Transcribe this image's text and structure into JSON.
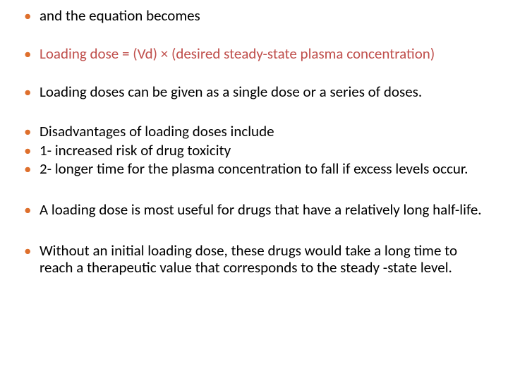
{
  "slide": {
    "background_color": "#ffffff",
    "bullet_color": "#de6f2c",
    "text_color": "#000000",
    "highlight_color": "#c0504d",
    "font_family": "Calibri",
    "body_fontsize": 21,
    "items": [
      {
        "text": "and the equation becomes",
        "highlighted": false,
        "gap": "sm"
      },
      {
        "text": "Loading dose = (Vd) × (desired steady-state plasma concentration)",
        "highlighted": true,
        "gap": "sm"
      },
      {
        "text": "Loading doses can be given as a single dose or a series of doses.",
        "highlighted": false,
        "gap": "md"
      },
      {
        "text": "Disadvantages of loading doses include",
        "highlighted": false,
        "gap": "xs"
      },
      {
        "text": "1- increased risk of drug toxicity",
        "highlighted": false,
        "gap": "xs"
      },
      {
        "text": "2- longer time for the plasma concentration to fall if excess levels occur.",
        "highlighted": false,
        "gap": "lg"
      },
      {
        "text": "A loading dose is most useful for drugs that have a relatively long half-life.",
        "highlighted": false,
        "gap": "lg"
      },
      {
        "text": "Without an initial loading dose, these drugs would take a long time to reach a therapeutic value that corresponds to the steady -state level.",
        "highlighted": false,
        "gap": "xs"
      }
    ]
  }
}
